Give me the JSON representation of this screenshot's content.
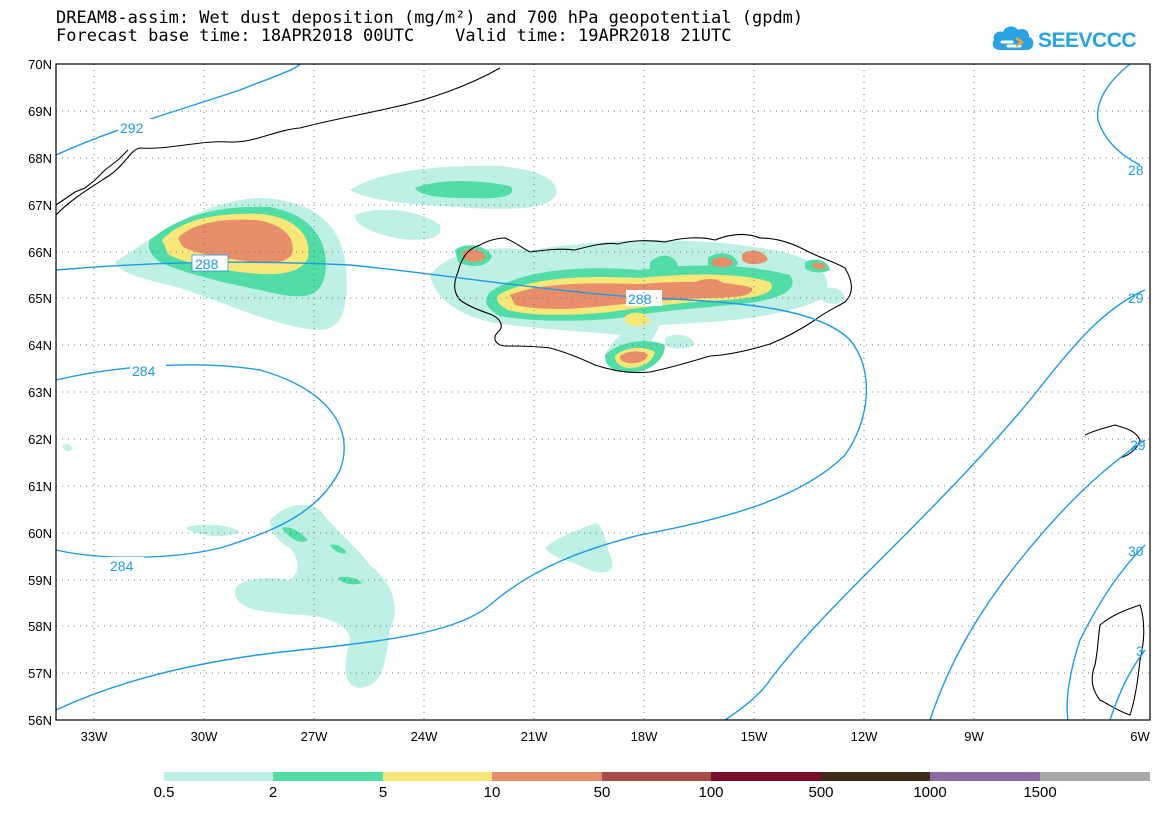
{
  "title": {
    "line1": "DREAM8-assim: Wet dust deposition (mg/m²) and 700 hPa geopotential (gpdm)",
    "line2": "Forecast base time: 18APR2018 00UTC    Valid time: 19APR2018 21UTC"
  },
  "logo": {
    "text": "SEEVCCC",
    "icon": "cloud-icon",
    "color": "#29a3e2"
  },
  "map": {
    "lat_labels": [
      "70N",
      "69N",
      "68N",
      "67N",
      "66N",
      "65N",
      "64N",
      "63N",
      "62N",
      "61N",
      "60N",
      "59N",
      "58N",
      "57N",
      "56N"
    ],
    "lon_labels": [
      "33W",
      "30W",
      "27W",
      "24W",
      "21W",
      "18W",
      "15W",
      "12W",
      "9W",
      "6W"
    ],
    "contour_labels": [
      "292",
      "288",
      "288",
      "284",
      "284",
      "28",
      "29",
      "29",
      "30",
      "3"
    ],
    "contour_color": "#1e9be6",
    "coastline_color": "#000000"
  },
  "legend": {
    "labels": [
      "0.5",
      "2",
      "5",
      "10",
      "50",
      "100",
      "500",
      "1000",
      "1500"
    ],
    "colors": [
      "#bff0e6",
      "#52dca6",
      "#f8e87a",
      "#e98e6a",
      "#a84e48",
      "#7a0e2a",
      "#3d2a18",
      "#8e6aa0",
      "#a8a8a8"
    ]
  }
}
